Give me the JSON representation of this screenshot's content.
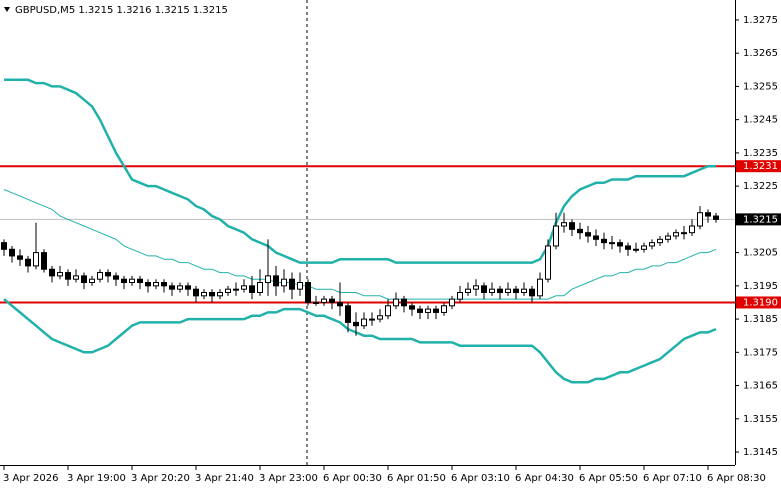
{
  "chart_data": {
    "type": "candlestick",
    "title": "GBPUSD,M5  1.3215 1.3216 1.3215 1.3215",
    "categories": [
      "3 Apr 2026",
      null,
      null,
      null,
      null,
      null,
      null,
      null,
      "3 Apr 19:00",
      null,
      null,
      null,
      null,
      null,
      null,
      null,
      "3 Apr 20:20",
      null,
      null,
      null,
      null,
      null,
      null,
      null,
      "3 Apr 21:40",
      null,
      null,
      null,
      null,
      null,
      null,
      null,
      "3 Apr 23:00",
      null,
      null,
      null,
      null,
      null,
      null,
      null,
      "6 Apr 00:30",
      null,
      null,
      null,
      null,
      null,
      null,
      null,
      "6 Apr 01:50",
      null,
      null,
      null,
      null,
      null,
      null,
      null,
      "6 Apr 03:10",
      null,
      null,
      null,
      null,
      null,
      null,
      null,
      "6 Apr 04:30",
      null,
      null,
      null,
      null,
      null,
      null,
      null,
      "6 Apr 05:50",
      null,
      null,
      null,
      null,
      null,
      null,
      null,
      "6 Apr 07:10",
      null,
      null,
      null,
      null,
      null,
      null,
      null,
      "6 Apr 08:30",
      null
    ],
    "ohlc": [
      [
        1.3208,
        1.3209,
        1.3204,
        1.3206
      ],
      [
        1.3206,
        1.3207,
        1.3202,
        1.3204
      ],
      [
        1.3204,
        1.3206,
        1.3201,
        1.3203
      ],
      [
        1.3203,
        1.3204,
        1.3199,
        1.3201
      ],
      [
        1.3201,
        1.3214,
        1.32,
        1.3205
      ],
      [
        1.3205,
        1.3206,
        1.3199,
        1.32
      ],
      [
        1.32,
        1.3201,
        1.3196,
        1.3198
      ],
      [
        1.3198,
        1.3201,
        1.3197,
        1.3199
      ],
      [
        1.3199,
        1.32,
        1.3195,
        1.3197
      ],
      [
        1.3197,
        1.32,
        1.3196,
        1.3198
      ],
      [
        1.3198,
        1.3199,
        1.3194,
        1.3196
      ],
      [
        1.3196,
        1.3198,
        1.3195,
        1.3197
      ],
      [
        1.3197,
        1.32,
        1.3196,
        1.3199
      ],
      [
        1.3199,
        1.32,
        1.3196,
        1.3198
      ],
      [
        1.3198,
        1.3199,
        1.3195,
        1.3197
      ],
      [
        1.3197,
        1.3198,
        1.3194,
        1.3196
      ],
      [
        1.3196,
        1.3198,
        1.3195,
        1.3197
      ],
      [
        1.3197,
        1.3198,
        1.3194,
        1.3196
      ],
      [
        1.3196,
        1.3197,
        1.3193,
        1.3195
      ],
      [
        1.3195,
        1.3197,
        1.3194,
        1.3196
      ],
      [
        1.3196,
        1.3197,
        1.3193,
        1.3195
      ],
      [
        1.3195,
        1.3196,
        1.3192,
        1.3194
      ],
      [
        1.3194,
        1.3196,
        1.3193,
        1.3195
      ],
      [
        1.3195,
        1.3196,
        1.3192,
        1.3194
      ],
      [
        1.3194,
        1.3195,
        1.319,
        1.3192
      ],
      [
        1.3192,
        1.3194,
        1.3191,
        1.3193
      ],
      [
        1.3193,
        1.3194,
        1.319,
        1.3192
      ],
      [
        1.3192,
        1.3194,
        1.3191,
        1.3193
      ],
      [
        1.3193,
        1.3195,
        1.3192,
        1.3194
      ],
      [
        1.3194,
        1.3196,
        1.3192,
        1.3194
      ],
      [
        1.3194,
        1.3197,
        1.3193,
        1.3195
      ],
      [
        1.3195,
        1.3198,
        1.3191,
        1.3193
      ],
      [
        1.3193,
        1.32,
        1.3192,
        1.3196
      ],
      [
        1.3196,
        1.3209,
        1.3192,
        1.3198
      ],
      [
        1.3198,
        1.3201,
        1.3192,
        1.3195
      ],
      [
        1.3195,
        1.32,
        1.3193,
        1.3197
      ],
      [
        1.3197,
        1.3199,
        1.3191,
        1.3194
      ],
      [
        1.3194,
        1.3199,
        1.3192,
        1.3196
      ],
      [
        1.3196,
        1.3197,
        1.3189,
        1.319
      ],
      [
        1.319,
        1.3192,
        1.3189,
        1.319
      ],
      [
        1.319,
        1.3192,
        1.3189,
        1.3191
      ],
      [
        1.3191,
        1.3192,
        1.3188,
        1.319
      ],
      [
        1.319,
        1.3196,
        1.3186,
        1.3189
      ],
      [
        1.3189,
        1.319,
        1.3181,
        1.3184
      ],
      [
        1.3184,
        1.3187,
        1.318,
        1.3183
      ],
      [
        1.3183,
        1.3187,
        1.3182,
        1.3185
      ],
      [
        1.3185,
        1.3187,
        1.3183,
        1.3185
      ],
      [
        1.3185,
        1.3188,
        1.3184,
        1.3186
      ],
      [
        1.3186,
        1.3191,
        1.3185,
        1.3189
      ],
      [
        1.3189,
        1.3193,
        1.3188,
        1.3191
      ],
      [
        1.3191,
        1.3192,
        1.3187,
        1.3189
      ],
      [
        1.3189,
        1.319,
        1.3186,
        1.3188
      ],
      [
        1.3188,
        1.3189,
        1.3185,
        1.3187
      ],
      [
        1.3187,
        1.3189,
        1.3185,
        1.3188
      ],
      [
        1.3188,
        1.3189,
        1.3185,
        1.3187
      ],
      [
        1.3187,
        1.319,
        1.3186,
        1.3189
      ],
      [
        1.3189,
        1.3192,
        1.3188,
        1.3191
      ],
      [
        1.3191,
        1.3195,
        1.319,
        1.3193
      ],
      [
        1.3193,
        1.3196,
        1.3192,
        1.3194
      ],
      [
        1.3194,
        1.3197,
        1.3192,
        1.3195
      ],
      [
        1.3195,
        1.3196,
        1.3191,
        1.3193
      ],
      [
        1.3193,
        1.3196,
        1.3192,
        1.3194
      ],
      [
        1.3194,
        1.3195,
        1.3191,
        1.3193
      ],
      [
        1.3193,
        1.3196,
        1.3192,
        1.3194
      ],
      [
        1.3194,
        1.3195,
        1.3191,
        1.3193
      ],
      [
        1.3193,
        1.3196,
        1.3192,
        1.3194
      ],
      [
        1.3194,
        1.3195,
        1.319,
        1.3192
      ],
      [
        1.3192,
        1.3199,
        1.3191,
        1.3197
      ],
      [
        1.3197,
        1.3209,
        1.3196,
        1.3207
      ],
      [
        1.3207,
        1.3217,
        1.3206,
        1.3213
      ],
      [
        1.3213,
        1.3217,
        1.3211,
        1.3214
      ],
      [
        1.3214,
        1.3215,
        1.321,
        1.3212
      ],
      [
        1.3212,
        1.3214,
        1.3209,
        1.3211
      ],
      [
        1.3211,
        1.3213,
        1.3208,
        1.321
      ],
      [
        1.321,
        1.3212,
        1.3207,
        1.3209
      ],
      [
        1.3209,
        1.3211,
        1.3206,
        1.3208
      ],
      [
        1.3208,
        1.321,
        1.3206,
        1.3208
      ],
      [
        1.3208,
        1.3209,
        1.3205,
        1.3207
      ],
      [
        1.3207,
        1.3208,
        1.3204,
        1.3206
      ],
      [
        1.3206,
        1.3208,
        1.3205,
        1.3206
      ],
      [
        1.3206,
        1.3208,
        1.3205,
        1.3207
      ],
      [
        1.3207,
        1.3209,
        1.3206,
        1.3208
      ],
      [
        1.3208,
        1.321,
        1.3207,
        1.3209
      ],
      [
        1.3209,
        1.3211,
        1.3208,
        1.321
      ],
      [
        1.321,
        1.3212,
        1.3209,
        1.3211
      ],
      [
        1.3211,
        1.3213,
        1.3209,
        1.3211
      ],
      [
        1.3211,
        1.3215,
        1.321,
        1.3213
      ],
      [
        1.3213,
        1.3219,
        1.3212,
        1.3217
      ],
      [
        1.3217,
        1.3218,
        1.3214,
        1.3216
      ],
      [
        1.3216,
        1.3217,
        1.3214,
        1.3215
      ]
    ],
    "bands": [
      {
        "color": "#20b2aa",
        "values": [
          1.3257,
          1.3257,
          1.3257,
          1.3257,
          1.3256,
          1.3256,
          1.3255,
          1.3255,
          1.3254,
          1.3253,
          1.3251,
          1.3249,
          1.3245,
          1.324,
          1.3235,
          1.3231,
          1.3227,
          1.3226,
          1.3225,
          1.3225,
          1.3224,
          1.3223,
          1.3222,
          1.3221,
          1.3219,
          1.3218,
          1.3216,
          1.3215,
          1.3213,
          1.3212,
          1.3211,
          1.3209,
          1.3208,
          1.3207,
          1.3205,
          1.3204,
          1.3203,
          1.3202,
          1.3202,
          1.3202,
          1.3202,
          1.3202,
          1.3203,
          1.3203,
          1.3203,
          1.3203,
          1.3203,
          1.3203,
          1.3203,
          1.3202,
          1.3202,
          1.3202,
          1.3202,
          1.3202,
          1.3202,
          1.3202,
          1.3202,
          1.3202,
          1.3202,
          1.3202,
          1.3202,
          1.3202,
          1.3202,
          1.3202,
          1.3202,
          1.3202,
          1.3202,
          1.3203,
          1.3207,
          1.3214,
          1.3219,
          1.3222,
          1.3224,
          1.3225,
          1.3226,
          1.3226,
          1.3227,
          1.3227,
          1.3227,
          1.3228,
          1.3228,
          1.3228,
          1.3228,
          1.3228,
          1.3228,
          1.3228,
          1.3229,
          1.323,
          1.3231,
          1.3231
        ]
      },
      {
        "color": "#20b2aa",
        "values": [
          1.3224,
          1.3223,
          1.3222,
          1.3221,
          1.322,
          1.3219,
          1.3218,
          1.3216,
          1.3215,
          1.3214,
          1.3213,
          1.3212,
          1.3211,
          1.321,
          1.3209,
          1.3207,
          1.3206,
          1.3205,
          1.3204,
          1.3204,
          1.3203,
          1.3203,
          1.3202,
          1.3202,
          1.3201,
          1.32,
          1.32,
          1.3199,
          1.3199,
          1.3198,
          1.3198,
          1.3197,
          1.3197,
          1.3197,
          1.3196,
          1.3196,
          1.3196,
          1.3195,
          1.3195,
          1.3194,
          1.3194,
          1.3194,
          1.3193,
          1.3193,
          1.3193,
          1.3192,
          1.3192,
          1.3192,
          1.3191,
          1.3191,
          1.3191,
          1.3191,
          1.3191,
          1.3191,
          1.3191,
          1.3191,
          1.3191,
          1.3191,
          1.3191,
          1.3191,
          1.3191,
          1.3191,
          1.3191,
          1.3191,
          1.3191,
          1.3191,
          1.3191,
          1.3191,
          1.3191,
          1.3192,
          1.3192,
          1.3194,
          1.3195,
          1.3196,
          1.3197,
          1.3198,
          1.3198,
          1.3199,
          1.3199,
          1.32,
          1.32,
          1.3201,
          1.3201,
          1.3202,
          1.3202,
          1.3203,
          1.3204,
          1.3205,
          1.3205,
          1.3206
        ]
      },
      {
        "color": "#20b2aa",
        "values": [
          1.3191,
          1.3189,
          1.3187,
          1.3185,
          1.3183,
          1.3181,
          1.3179,
          1.3178,
          1.3177,
          1.3176,
          1.3175,
          1.3175,
          1.3176,
          1.3177,
          1.3179,
          1.3181,
          1.3183,
          1.3184,
          1.3184,
          1.3184,
          1.3184,
          1.3184,
          1.3184,
          1.3185,
          1.3185,
          1.3185,
          1.3185,
          1.3185,
          1.3185,
          1.3185,
          1.3185,
          1.3186,
          1.3186,
          1.3187,
          1.3187,
          1.3188,
          1.3188,
          1.3188,
          1.3187,
          1.3186,
          1.3186,
          1.3185,
          1.3184,
          1.3182,
          1.3181,
          1.318,
          1.318,
          1.3179,
          1.3179,
          1.3179,
          1.3179,
          1.3179,
          1.3178,
          1.3178,
          1.3178,
          1.3178,
          1.3178,
          1.3177,
          1.3177,
          1.3177,
          1.3177,
          1.3177,
          1.3177,
          1.3177,
          1.3177,
          1.3177,
          1.3177,
          1.3175,
          1.3172,
          1.3169,
          1.3167,
          1.3166,
          1.3166,
          1.3166,
          1.3167,
          1.3167,
          1.3168,
          1.3169,
          1.3169,
          1.317,
          1.3171,
          1.3172,
          1.3173,
          1.3175,
          1.3177,
          1.3179,
          1.318,
          1.3181,
          1.3181,
          1.3182
        ]
      }
    ],
    "levels": [
      {
        "value": 1.3231,
        "label": "1.3231",
        "color": "#e00000"
      },
      {
        "value": 1.319,
        "label": "1.3190",
        "color": "#e00000"
      }
    ],
    "last_price": 1.3215,
    "ylim": [
      1.31411,
      1.3281
    ],
    "yticks": [
      1.3275,
      1.3265,
      1.3255,
      1.3245,
      1.3235,
      1.3225,
      1.3205,
      1.3195,
      1.3185,
      1.3175,
      1.3165,
      1.3155,
      1.3145
    ]
  }
}
